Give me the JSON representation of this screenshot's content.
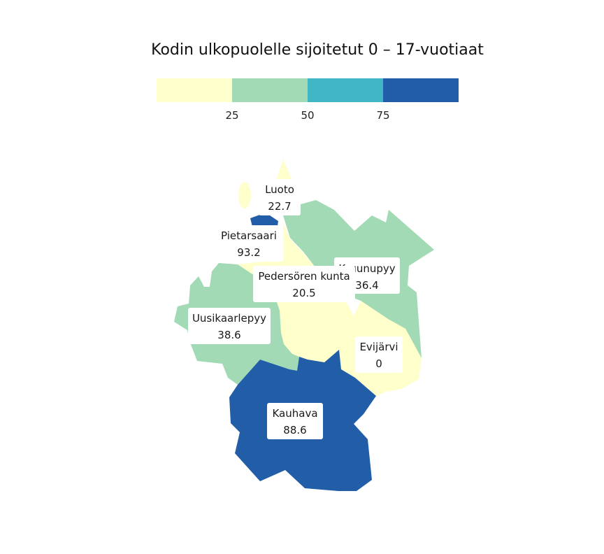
{
  "map": {
    "title": "Kodin ulkopuolelle sijoitetut 0 – 17-vuotiaat",
    "legend": {
      "bins": [
        {
          "color": "#ffffcc"
        },
        {
          "color": "#a1dab4"
        },
        {
          "color": "#41b6c4"
        },
        {
          "color": "#225ea8"
        }
      ],
      "breaks": [
        "25",
        "50",
        "75"
      ]
    },
    "regions": [
      {
        "id": "luoto",
        "name": "Luoto",
        "value": "22.7",
        "color": "#ffffcc"
      },
      {
        "id": "pietarsaari",
        "name": "Pietarsaari",
        "value": "93.2",
        "color": "#225ea8"
      },
      {
        "id": "kruunupyy",
        "name": "Kruunupyy",
        "value": "36.4",
        "color": "#a1dab4"
      },
      {
        "id": "pedersoren-kunta",
        "name": "Pedersören kunta",
        "value": "20.5",
        "color": "#ffffcc"
      },
      {
        "id": "uusikaarlepyy",
        "name": "Uusikaarlepyy",
        "value": "38.6",
        "color": "#a1dab4"
      },
      {
        "id": "evijarvi",
        "name": "Evijärvi",
        "value": "0",
        "color": "#ffffcc"
      },
      {
        "id": "kauhava",
        "name": "Kauhava",
        "value": "88.6",
        "color": "#225ea8"
      }
    ]
  }
}
